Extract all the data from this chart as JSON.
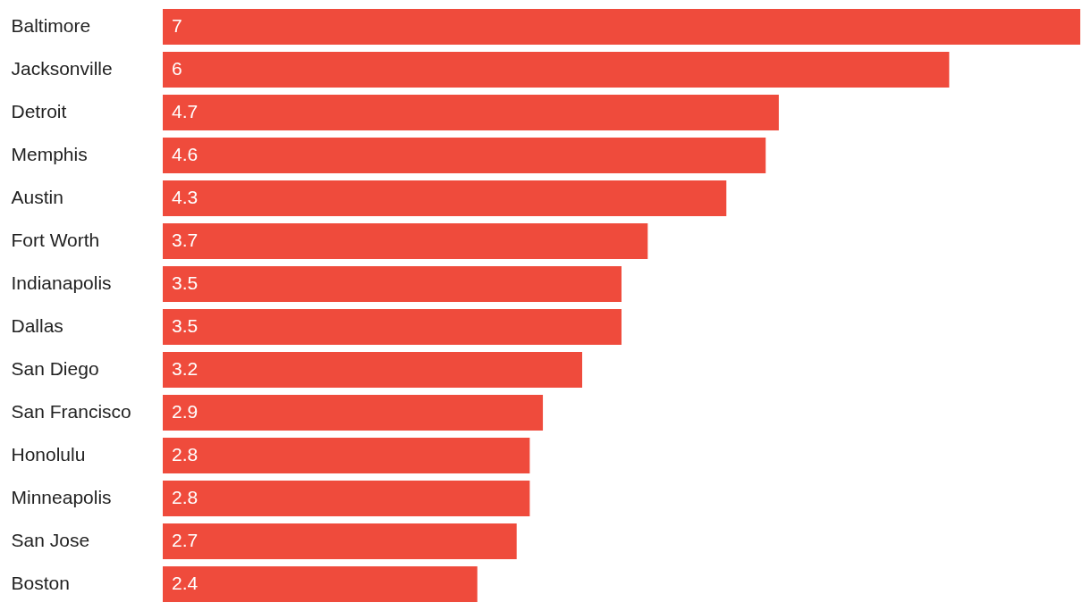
{
  "chart_data": {
    "type": "bar",
    "orientation": "horizontal",
    "categories": [
      "Baltimore",
      "Jacksonville",
      "Detroit",
      "Memphis",
      "Austin",
      "Fort Worth",
      "Indianapolis",
      "Dallas",
      "San Diego",
      "San Francisco",
      "Honolulu",
      "Minneapolis",
      "San Jose",
      "Boston"
    ],
    "values": [
      7,
      6,
      4.7,
      4.6,
      4.3,
      3.7,
      3.5,
      3.5,
      3.2,
      2.9,
      2.8,
      2.8,
      2.7,
      2.4
    ],
    "color": "#ef4b3c",
    "data_labels": true
  }
}
